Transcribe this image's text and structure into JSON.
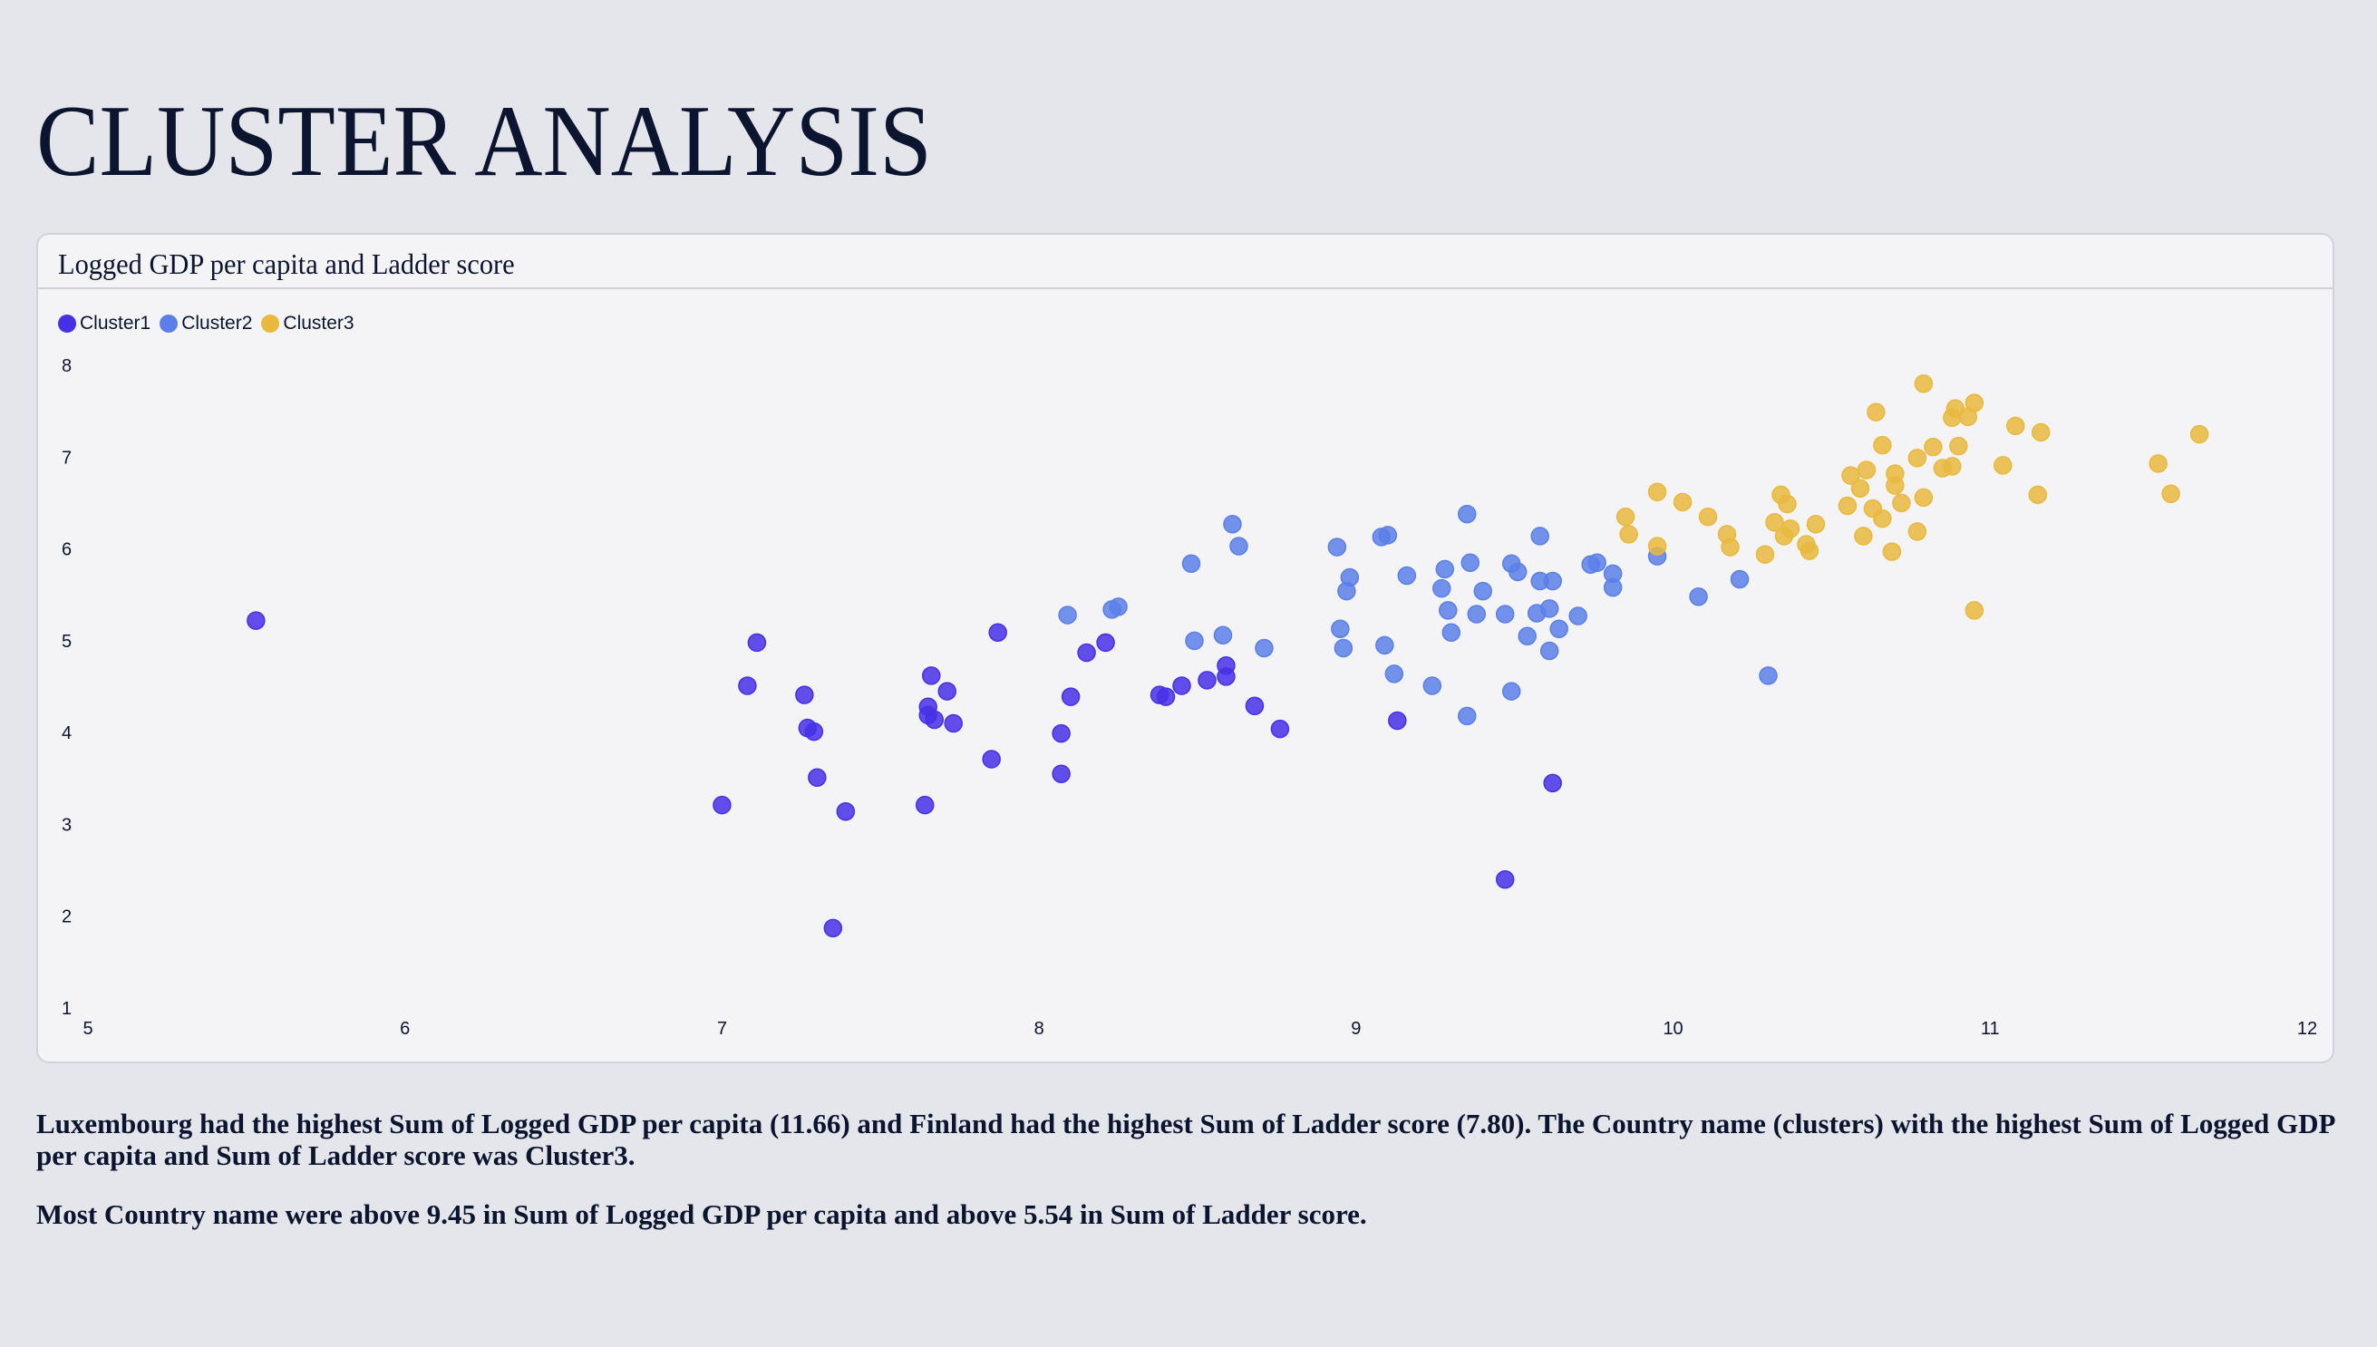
{
  "page": {
    "title": "CLUSTER ANALYSIS"
  },
  "card": {
    "title": "Logged GDP per capita and Ladder score"
  },
  "legend": [
    {
      "label": "Cluster1",
      "color": "#4630e8"
    },
    {
      "label": "Cluster2",
      "color": "#5b7fe8"
    },
    {
      "label": "Cluster3",
      "color": "#e9b83e"
    }
  ],
  "summary": {
    "paragraph_1": "Luxembourg had the highest Sum of Logged GDP per capita (11.66) and Finland had the highest Sum of Ladder score (7.80). The Country name (clusters) with the highest Sum of Logged GDP per capita and Sum of Ladder score was Cluster3.",
    "paragraph_2": "Most Country name were above 9.45 in Sum of Logged GDP per capita and above 5.54 in Sum of Ladder score."
  },
  "chart_data": {
    "type": "scatter",
    "title": "Logged GDP per capita and Ladder score",
    "xlabel": "Logged GDP per capita",
    "ylabel": "Ladder score",
    "xlim": [
      5,
      12
    ],
    "ylim": [
      1,
      8
    ],
    "x_ticks": [
      5,
      6,
      7,
      8,
      9,
      10,
      11,
      12
    ],
    "y_ticks": [
      1,
      2,
      3,
      4,
      5,
      6,
      7,
      8
    ],
    "grid": false,
    "legend_position": "top-left",
    "series": [
      {
        "name": "Cluster1",
        "color": "#4630e8",
        "points": [
          [
            5.53,
            5.22
          ],
          [
            7.11,
            4.98
          ],
          [
            7.08,
            4.51
          ],
          [
            7.26,
            4.41
          ],
          [
            7.27,
            4.05
          ],
          [
            7.29,
            4.01
          ],
          [
            7.3,
            3.51
          ],
          [
            7.0,
            3.21
          ],
          [
            7.39,
            3.14
          ],
          [
            7.35,
            1.87
          ],
          [
            7.66,
            4.62
          ],
          [
            7.71,
            4.45
          ],
          [
            7.65,
            4.28
          ],
          [
            7.65,
            4.19
          ],
          [
            7.67,
            4.14
          ],
          [
            7.73,
            4.1
          ],
          [
            7.64,
            3.21
          ],
          [
            7.87,
            5.09
          ],
          [
            7.85,
            3.71
          ],
          [
            8.07,
            3.99
          ],
          [
            8.07,
            3.55
          ],
          [
            8.1,
            4.39
          ],
          [
            8.15,
            4.87
          ],
          [
            8.21,
            4.98
          ],
          [
            8.38,
            4.41
          ],
          [
            8.4,
            4.39
          ],
          [
            8.45,
            4.51
          ],
          [
            8.53,
            4.57
          ],
          [
            8.59,
            4.73
          ],
          [
            8.59,
            4.61
          ],
          [
            8.68,
            4.29
          ],
          [
            8.76,
            4.04
          ],
          [
            9.13,
            4.13
          ],
          [
            9.47,
            2.4
          ],
          [
            9.62,
            3.45
          ]
        ]
      },
      {
        "name": "Cluster2",
        "color": "#5b7fe8",
        "points": [
          [
            8.09,
            5.28
          ],
          [
            8.23,
            5.34
          ],
          [
            8.25,
            5.37
          ],
          [
            8.48,
            5.84
          ],
          [
            8.49,
            5.0
          ],
          [
            8.58,
            5.06
          ],
          [
            8.61,
            6.27
          ],
          [
            8.63,
            6.03
          ],
          [
            8.71,
            4.92
          ],
          [
            8.94,
            6.02
          ],
          [
            8.95,
            5.13
          ],
          [
            8.96,
            4.92
          ],
          [
            8.97,
            5.54
          ],
          [
            8.98,
            5.69
          ],
          [
            9.08,
            6.13
          ],
          [
            9.1,
            6.15
          ],
          [
            9.09,
            4.95
          ],
          [
            9.12,
            4.64
          ],
          [
            9.16,
            5.71
          ],
          [
            9.24,
            4.51
          ],
          [
            9.27,
            5.57
          ],
          [
            9.28,
            5.78
          ],
          [
            9.29,
            5.33
          ],
          [
            9.3,
            5.09
          ],
          [
            9.35,
            6.38
          ],
          [
            9.36,
            5.85
          ],
          [
            9.35,
            4.18
          ],
          [
            9.38,
            5.29
          ],
          [
            9.4,
            5.54
          ],
          [
            9.47,
            5.29
          ],
          [
            9.49,
            5.84
          ],
          [
            9.51,
            5.75
          ],
          [
            9.49,
            4.45
          ],
          [
            9.54,
            5.05
          ],
          [
            9.57,
            5.3
          ],
          [
            9.58,
            6.14
          ],
          [
            9.58,
            5.65
          ],
          [
            9.62,
            5.65
          ],
          [
            9.61,
            5.35
          ],
          [
            9.61,
            4.89
          ],
          [
            9.64,
            5.13
          ],
          [
            9.7,
            5.27
          ],
          [
            9.74,
            5.83
          ],
          [
            9.76,
            5.85
          ],
          [
            9.81,
            5.73
          ],
          [
            9.81,
            5.58
          ],
          [
            9.95,
            5.92
          ],
          [
            10.08,
            5.48
          ],
          [
            10.21,
            5.67
          ],
          [
            10.3,
            4.62
          ]
        ]
      },
      {
        "name": "Cluster3",
        "color": "#e9b83e",
        "points": [
          [
            9.85,
            6.35
          ],
          [
            9.86,
            6.16
          ],
          [
            9.95,
            6.62
          ],
          [
            9.95,
            6.03
          ],
          [
            10.03,
            6.51
          ],
          [
            10.11,
            6.35
          ],
          [
            10.17,
            6.16
          ],
          [
            10.18,
            6.02
          ],
          [
            10.29,
            5.94
          ],
          [
            10.32,
            6.29
          ],
          [
            10.34,
            6.59
          ],
          [
            10.36,
            6.49
          ],
          [
            10.35,
            6.14
          ],
          [
            10.37,
            6.22
          ],
          [
            10.42,
            6.05
          ],
          [
            10.43,
            5.98
          ],
          [
            10.45,
            6.27
          ],
          [
            10.55,
            6.47
          ],
          [
            10.56,
            6.8
          ],
          [
            10.59,
            6.66
          ],
          [
            10.61,
            6.86
          ],
          [
            10.6,
            6.14
          ],
          [
            10.63,
            6.44
          ],
          [
            10.64,
            7.49
          ],
          [
            10.66,
            7.13
          ],
          [
            10.66,
            6.33
          ],
          [
            10.69,
            5.97
          ],
          [
            10.7,
            6.69
          ],
          [
            10.7,
            6.82
          ],
          [
            10.72,
            6.5
          ],
          [
            10.77,
            6.99
          ],
          [
            10.77,
            6.19
          ],
          [
            10.79,
            7.8
          ],
          [
            10.79,
            6.56
          ],
          [
            10.82,
            7.11
          ],
          [
            10.85,
            6.88
          ],
          [
            10.88,
            6.9
          ],
          [
            10.88,
            7.43
          ],
          [
            10.89,
            7.53
          ],
          [
            10.9,
            7.12
          ],
          [
            10.93,
            7.44
          ],
          [
            10.95,
            7.59
          ],
          [
            10.95,
            5.33
          ],
          [
            11.04,
            6.91
          ],
          [
            11.08,
            7.34
          ],
          [
            11.15,
            6.59
          ],
          [
            11.16,
            7.27
          ],
          [
            11.53,
            6.93
          ],
          [
            11.57,
            6.6
          ],
          [
            11.66,
            7.25
          ]
        ]
      }
    ]
  }
}
